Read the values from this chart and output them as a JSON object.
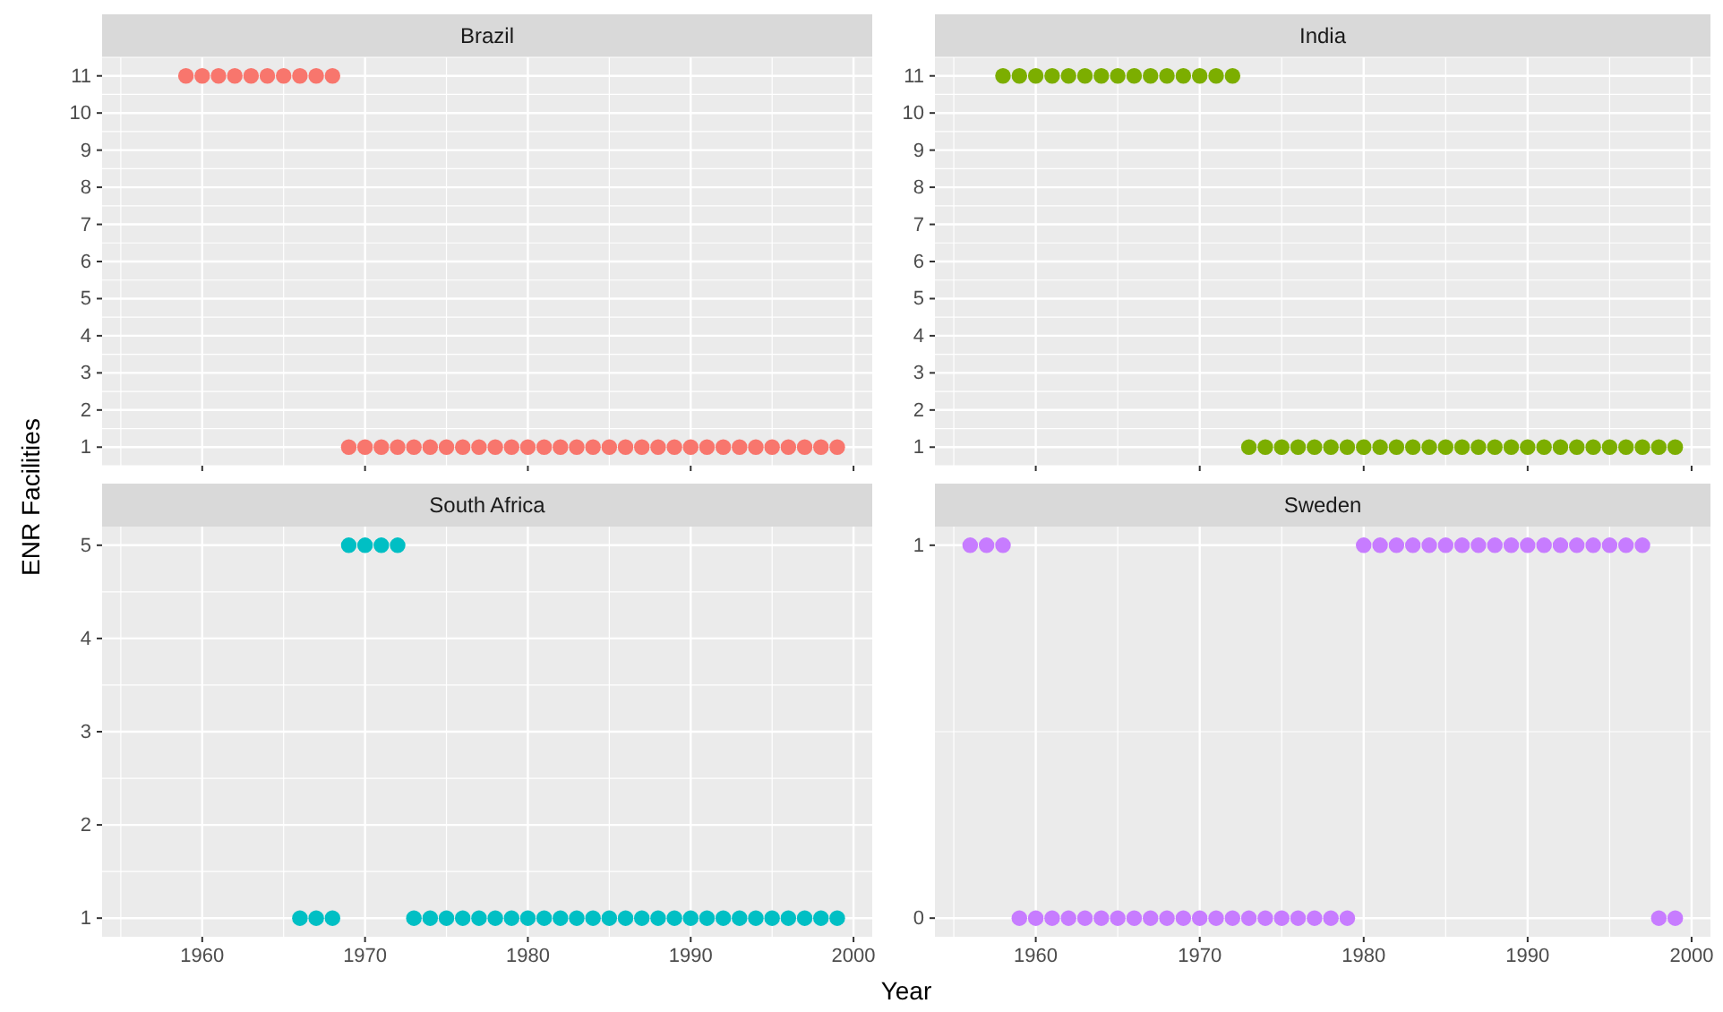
{
  "chart_data": [
    {
      "type": "scatter",
      "title": "Brazil",
      "ylabel": "ENR Facilities",
      "marker": "circle",
      "grid": true,
      "tick_labels": "y",
      "xlim": [
        1953.85,
        2001.15
      ],
      "xticks": [
        1960,
        1970,
        1980,
        1990,
        2000
      ],
      "ylim": [
        0.5,
        11.5
      ],
      "yticks": [
        1,
        2,
        3,
        4,
        5,
        6,
        7,
        8,
        9,
        10,
        11
      ],
      "series": [
        {
          "color": "#f8766d",
          "x": [
            1959,
            1960,
            1961,
            1962,
            1963,
            1964,
            1965,
            1966,
            1967,
            1968,
            1969,
            1970,
            1971,
            1972,
            1973,
            1974,
            1975,
            1976,
            1977,
            1978,
            1979,
            1980,
            1981,
            1982,
            1983,
            1984,
            1985,
            1986,
            1987,
            1988,
            1989,
            1990,
            1991,
            1992,
            1993,
            1994,
            1995,
            1996,
            1997,
            1998,
            1999
          ],
          "values": [
            11,
            11,
            11,
            11,
            11,
            11,
            11,
            11,
            11,
            11,
            1,
            1,
            1,
            1,
            1,
            1,
            1,
            1,
            1,
            1,
            1,
            1,
            1,
            1,
            1,
            1,
            1,
            1,
            1,
            1,
            1,
            1,
            1,
            1,
            1,
            1,
            1,
            1,
            1,
            1,
            1
          ]
        }
      ]
    },
    {
      "type": "scatter",
      "title": "India",
      "marker": "circle",
      "grid": true,
      "tick_labels": "y",
      "xlim": [
        1953.85,
        2001.15
      ],
      "xticks": [
        1960,
        1970,
        1980,
        1990,
        2000
      ],
      "ylim": [
        0.5,
        11.5
      ],
      "yticks": [
        1,
        2,
        3,
        4,
        5,
        6,
        7,
        8,
        9,
        10,
        11
      ],
      "series": [
        {
          "color": "#7cae00",
          "x": [
            1958,
            1959,
            1960,
            1961,
            1962,
            1963,
            1964,
            1965,
            1966,
            1967,
            1968,
            1969,
            1970,
            1971,
            1972,
            1973,
            1974,
            1975,
            1976,
            1977,
            1978,
            1979,
            1980,
            1981,
            1982,
            1983,
            1984,
            1985,
            1986,
            1987,
            1988,
            1989,
            1990,
            1991,
            1992,
            1993,
            1994,
            1995,
            1996,
            1997,
            1998,
            1999
          ],
          "values": [
            11,
            11,
            11,
            11,
            11,
            11,
            11,
            11,
            11,
            11,
            11,
            11,
            11,
            11,
            11,
            1,
            1,
            1,
            1,
            1,
            1,
            1,
            1,
            1,
            1,
            1,
            1,
            1,
            1,
            1,
            1,
            1,
            1,
            1,
            1,
            1,
            1,
            1,
            1,
            1,
            1,
            1
          ]
        }
      ]
    },
    {
      "type": "scatter",
      "title": "South Africa",
      "xlabel": "Year",
      "marker": "circle",
      "grid": true,
      "xlim": [
        1953.85,
        2001.15
      ],
      "xticks": [
        1960,
        1970,
        1980,
        1990,
        2000
      ],
      "ylim": [
        0.8,
        5.2
      ],
      "yticks": [
        1,
        2,
        3,
        4,
        5
      ],
      "series": [
        {
          "color": "#00bfc4",
          "x": [
            1966,
            1967,
            1968,
            1969,
            1970,
            1971,
            1972,
            1973,
            1974,
            1975,
            1976,
            1977,
            1978,
            1979,
            1980,
            1981,
            1982,
            1983,
            1984,
            1985,
            1986,
            1987,
            1988,
            1989,
            1990,
            1991,
            1992,
            1993,
            1994,
            1995,
            1996,
            1997,
            1998,
            1999
          ],
          "values": [
            1,
            1,
            1,
            5,
            5,
            5,
            5,
            1,
            1,
            1,
            1,
            1,
            1,
            1,
            1,
            1,
            1,
            1,
            1,
            1,
            1,
            1,
            1,
            1,
            1,
            1,
            1,
            1,
            1,
            1,
            1,
            1,
            1,
            1
          ]
        }
      ]
    },
    {
      "type": "scatter",
      "title": "Sweden",
      "marker": "circle",
      "grid": true,
      "xlim": [
        1953.85,
        2001.15
      ],
      "xticks": [
        1960,
        1970,
        1980,
        1990,
        2000
      ],
      "ylim": [
        -0.05,
        1.05
      ],
      "yticks": [
        0,
        1
      ],
      "series": [
        {
          "color": "#c77cff",
          "x": [
            1956,
            1957,
            1958,
            1959,
            1960,
            1961,
            1962,
            1963,
            1964,
            1965,
            1966,
            1967,
            1968,
            1969,
            1970,
            1971,
            1972,
            1973,
            1974,
            1975,
            1976,
            1977,
            1978,
            1979,
            1980,
            1981,
            1982,
            1983,
            1984,
            1985,
            1986,
            1987,
            1988,
            1989,
            1990,
            1991,
            1992,
            1993,
            1994,
            1995,
            1996,
            1997,
            1998,
            1999
          ],
          "values": [
            1,
            1,
            1,
            0,
            0,
            0,
            0,
            0,
            0,
            0,
            0,
            0,
            0,
            0,
            0,
            0,
            0,
            0,
            0,
            0,
            0,
            0,
            0,
            0,
            1,
            1,
            1,
            1,
            1,
            1,
            1,
            1,
            1,
            1,
            1,
            1,
            1,
            1,
            1,
            1,
            1,
            1,
            0,
            0
          ]
        }
      ]
    }
  ]
}
